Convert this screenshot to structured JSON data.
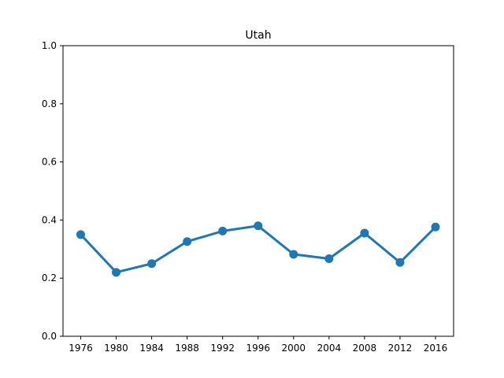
{
  "chart_data": {
    "type": "line",
    "title": "Utah",
    "xlabel": "",
    "ylabel": "",
    "categories": [
      "1976",
      "1980",
      "1984",
      "1988",
      "1992",
      "1996",
      "2000",
      "2004",
      "2008",
      "2012",
      "2016"
    ],
    "series": [
      {
        "values": [
          0.35,
          0.22,
          0.25,
          0.326,
          0.362,
          0.38,
          0.282,
          0.267,
          0.355,
          0.254,
          0.376
        ],
        "color": "#1f77b4"
      }
    ],
    "ylim": [
      0,
      1
    ],
    "yticks": [
      "0.0",
      "0.2",
      "0.4",
      "0.6",
      "0.8",
      "1.0"
    ],
    "grid": false,
    "legend": "none"
  }
}
